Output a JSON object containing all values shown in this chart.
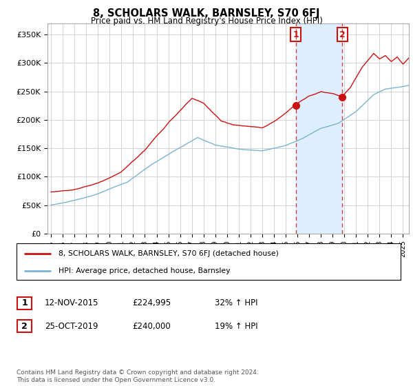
{
  "title": "8, SCHOLARS WALK, BARNSLEY, S70 6FJ",
  "subtitle": "Price paid vs. HM Land Registry's House Price Index (HPI)",
  "ylabel_ticks": [
    "£0",
    "£50K",
    "£100K",
    "£150K",
    "£200K",
    "£250K",
    "£300K",
    "£350K"
  ],
  "ytick_values": [
    0,
    50000,
    100000,
    150000,
    200000,
    250000,
    300000,
    350000
  ],
  "ylim": [
    0,
    370000
  ],
  "xlim_start": 1994.7,
  "xlim_end": 2025.5,
  "hpi_color": "#7ab3d4",
  "price_color": "#cc1111",
  "marker1_date": 2015.87,
  "marker1_price": 224995,
  "marker2_date": 2019.82,
  "marker2_price": 240000,
  "legend_line1": "8, SCHOLARS WALK, BARNSLEY, S70 6FJ (detached house)",
  "legend_line2": "HPI: Average price, detached house, Barnsley",
  "table_row1_num": "1",
  "table_row1_date": "12-NOV-2015",
  "table_row1_price": "£224,995",
  "table_row1_hpi": "32% ↑ HPI",
  "table_row2_num": "2",
  "table_row2_date": "25-OCT-2019",
  "table_row2_price": "£240,000",
  "table_row2_hpi": "19% ↑ HPI",
  "footer": "Contains HM Land Registry data © Crown copyright and database right 2024.\nThis data is licensed under the Open Government Licence v3.0.",
  "shade_color": "#ddeeff"
}
